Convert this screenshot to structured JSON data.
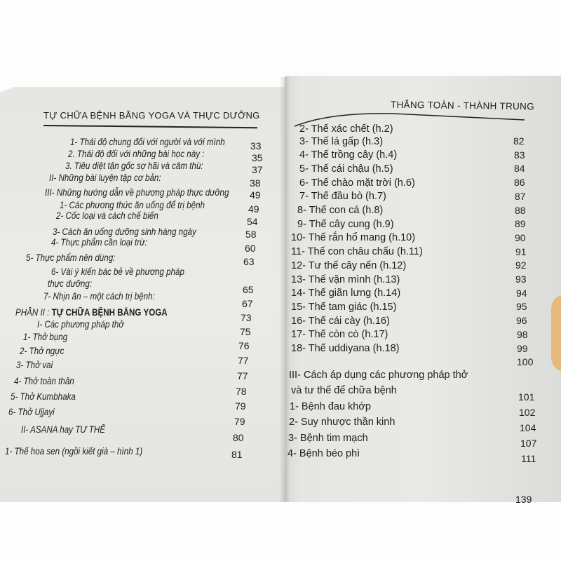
{
  "left_page": {
    "header": "TỰ CHỮA BỆNH BẰNG YOGA VÀ THỰC DƯỠNG",
    "entries": [
      {
        "text": "1- Thái độ chung đối với người và với mình",
        "page": "33"
      },
      {
        "text": "2. Thái độ đối với những bài học này :",
        "page": "35"
      },
      {
        "text": "3. Tiêu diệt tận gốc sợ hãi và căm thù:",
        "page": "37"
      },
      {
        "text": "II-  Những bài luyện tập cơ bản:",
        "page": "38"
      },
      {
        "text": "III-  Những hướng dẫn về phương pháp thực dưỡng",
        "page": "49"
      },
      {
        "text": "1- Các phương thức ăn uống để trị bệnh",
        "page": "49"
      },
      {
        "text": "2- Cốc loại và cách chế biến",
        "page": "54"
      },
      {
        "text": "3- Cách ăn uống dưỡng sinh hàng ngày",
        "page": "58"
      },
      {
        "text": "4- Thực phẩm cần loại trừ:",
        "page": "60"
      },
      {
        "text": "5- Thực phẩm nên dùng:",
        "page": "63"
      },
      {
        "text": "6- Vài ý kiến bác bẻ về phương pháp",
        "page": ""
      },
      {
        "text": "thực dưỡng:",
        "page": "65"
      },
      {
        "text": "7- Nhịn ăn – một cách trị bệnh:",
        "page": "67"
      },
      {
        "text_prefix": "PHẦN II : ",
        "text": "TỰ CHỮA BỆNH BẰNG YOGA",
        "page": "73"
      },
      {
        "text": "I- Các phương pháp thở",
        "page": "75"
      },
      {
        "text": "1-  Thở bụng",
        "page": "76"
      },
      {
        "text": "2-  Thở ngực",
        "page": "77"
      },
      {
        "text": "3-  Thở vai",
        "page": "77"
      },
      {
        "text": "4-  Thở toàn thân",
        "page": "78"
      },
      {
        "text": "5-  Thở Kumbhaka",
        "page": "79"
      },
      {
        "text": "6-  Thở Ujjayi",
        "page": "79"
      },
      {
        "text": "II- ASANA hay TƯ THẾ",
        "page": "80"
      },
      {
        "text": "1-  Thế hoa sen (ngồi kiết già – hình 1)",
        "page": "81"
      }
    ]
  },
  "right_page": {
    "header": "THẮNG TOÀN - THÀNH TRUNG",
    "entries": [
      {
        "text": "2-  Thế xác chết (h.2)",
        "page": ""
      },
      {
        "text": "3-  Thế lá gấp (h.3)",
        "page": "82"
      },
      {
        "text": "4-  Thế trồng cây (h.4)",
        "page": "83"
      },
      {
        "text": "5-  Thế cái chậu (h.5)",
        "page": "84"
      },
      {
        "text": "6-  Thế chào mặt trời (h.6)",
        "page": "86"
      },
      {
        "text": "7-  Thế đầu bò (h.7)",
        "page": "87"
      },
      {
        "text": "8-  Thế con cá (h.8)",
        "page": "88"
      },
      {
        "text": "9-  Thế cây cung (h.9)",
        "page": "89"
      },
      {
        "text": "10-  Thế rắn hổ mang (h.10)",
        "page": "90"
      },
      {
        "text": "11-  Thế con châu chấu (h.11)",
        "page": "91"
      },
      {
        "text": "12-  Tư thế cây nến (h.12)",
        "page": "92"
      },
      {
        "text": "13-  Thế vặn mình (h.13)",
        "page": "93"
      },
      {
        "text": "14-  Thế giãn lưng (h.14)",
        "page": "94"
      },
      {
        "text": "15-  Thế tam giác (h.15)",
        "page": "95"
      },
      {
        "text": "16-  Thế cái cày (h.16)",
        "page": "96"
      },
      {
        "text": "17-  Thế còn cò (h.17)",
        "page": "98"
      },
      {
        "text": "18-  Thế uddiyana (h.18)",
        "page": "99"
      },
      {
        "text": "III- Cách áp dụng các phương pháp thở",
        "page": "100"
      },
      {
        "text": "và tư thế để chữa bệnh",
        "page": ""
      },
      {
        "text": "1-   Bệnh đau khớp",
        "page": "101"
      },
      {
        "text": "2-  Suy nhược thần kinh",
        "page": "102"
      },
      {
        "text": "3-  Bệnh tim mạch",
        "page": "104"
      },
      {
        "text": "4-  Bệnh béo phì",
        "page": "107"
      },
      {
        "text": "",
        "page": "111"
      }
    ],
    "page_number": "139"
  }
}
